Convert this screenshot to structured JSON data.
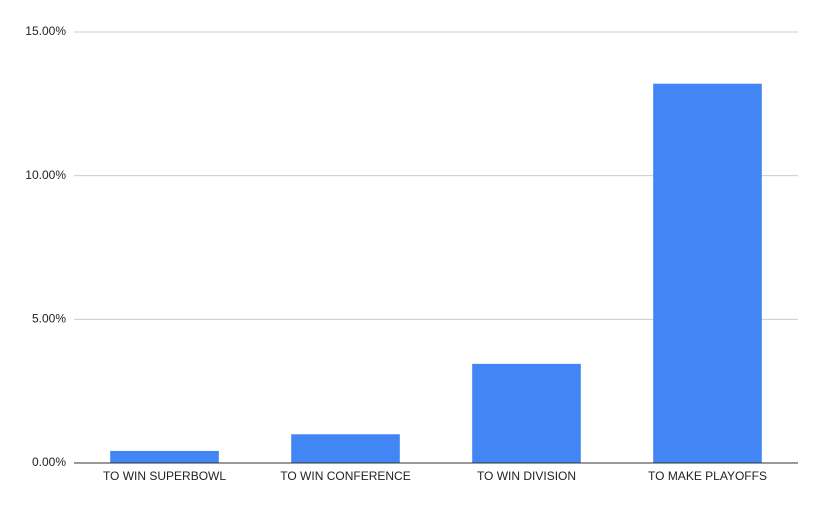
{
  "chart_data": {
    "type": "bar",
    "categories": [
      "TO WIN SUPERBOWL",
      "TO WIN CONFERENCE",
      "TO WIN DIVISION",
      "TO MAKE PLAYOFFS"
    ],
    "values": [
      0.42,
      1.0,
      3.45,
      13.2
    ],
    "color": "#4285f4",
    "ylim": [
      0,
      15
    ],
    "yticks": [
      {
        "value": 0,
        "label": "0.00%"
      },
      {
        "value": 5,
        "label": "5.00%"
      },
      {
        "value": 10,
        "label": "10.00%"
      },
      {
        "value": 15,
        "label": "15.00%"
      }
    ],
    "grid": true
  }
}
